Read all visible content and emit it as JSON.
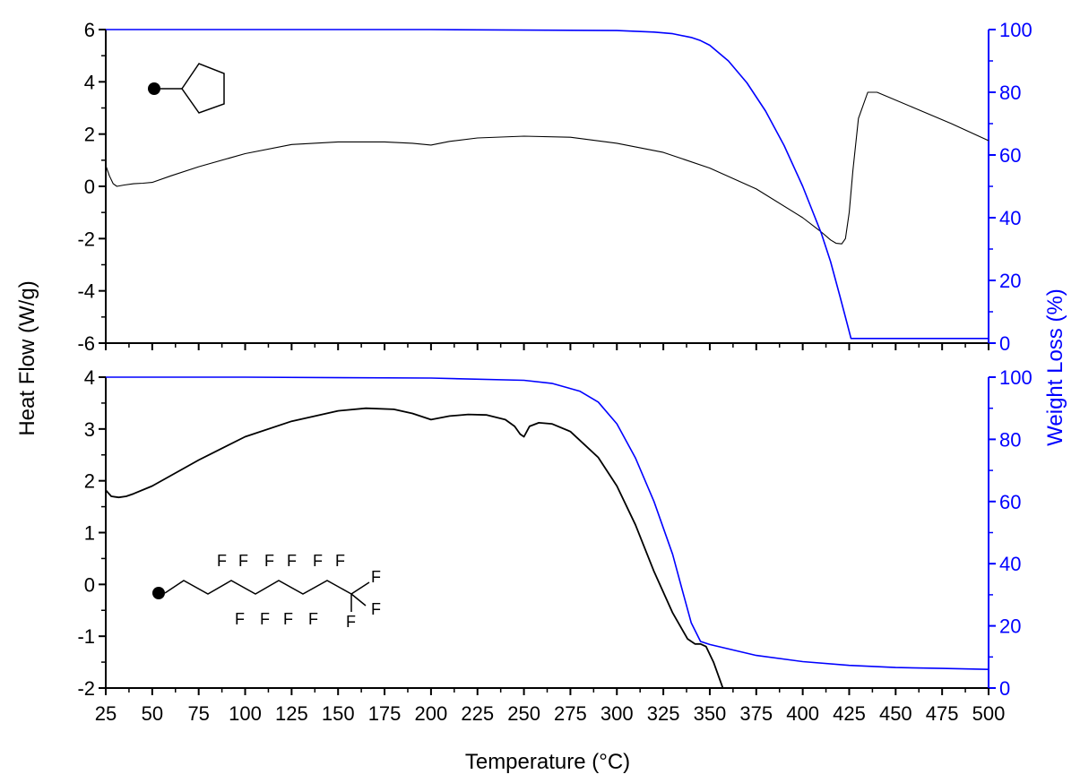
{
  "figure": {
    "xlabel": "Temperature (°C)",
    "ylabel_left": "Heat Flow (W/g)",
    "ylabel_right": "Weight Loss (%)",
    "colors": {
      "heat_flow": "#000000",
      "weight_loss": "#0000ff",
      "axes": "#000000"
    }
  },
  "chart_data": [
    {
      "type": "line",
      "panel": "top",
      "inset_structure": "cyclopentyl",
      "xlim": [
        25,
        500
      ],
      "xticks": [
        25,
        50,
        75,
        100,
        125,
        150,
        175,
        200,
        225,
        250,
        275,
        300,
        325,
        350,
        375,
        400,
        425,
        450,
        475,
        500
      ],
      "y_left": {
        "label": "Heat Flow (W/g)",
        "lim": [
          -6,
          6
        ],
        "ticks": [
          -6,
          -4,
          -2,
          0,
          2,
          4,
          6
        ]
      },
      "y_right": {
        "label": "Weight Loss (%)",
        "lim": [
          0,
          100
        ],
        "ticks": [
          0,
          20,
          40,
          60,
          80,
          100
        ]
      },
      "series": [
        {
          "axis": "left",
          "color": "#000000",
          "x": [
            25,
            27,
            29,
            31,
            35,
            40,
            45,
            50,
            60,
            75,
            100,
            125,
            150,
            175,
            190,
            200,
            210,
            225,
            250,
            275,
            300,
            325,
            350,
            375,
            400,
            410,
            415,
            418,
            421,
            423,
            425,
            427,
            430,
            435,
            440,
            460,
            480,
            500
          ],
          "y": [
            0.8,
            0.4,
            0.1,
            0.0,
            0.05,
            0.1,
            0.12,
            0.15,
            0.4,
            0.75,
            1.25,
            1.6,
            1.7,
            1.7,
            1.65,
            1.58,
            1.72,
            1.85,
            1.92,
            1.88,
            1.65,
            1.3,
            0.7,
            -0.1,
            -1.2,
            -1.75,
            -2.05,
            -2.18,
            -2.2,
            -2.0,
            -1.0,
            0.6,
            2.6,
            3.6,
            3.6,
            3.0,
            2.4,
            1.75
          ]
        },
        {
          "axis": "right",
          "color": "#0000ff",
          "x": [
            25,
            100,
            200,
            300,
            320,
            330,
            340,
            345,
            350,
            360,
            370,
            380,
            390,
            400,
            410,
            415,
            420,
            424,
            426,
            430,
            450,
            475,
            500
          ],
          "y": [
            100,
            100,
            100,
            99.7,
            99.2,
            98.7,
            97.5,
            96.5,
            95.0,
            90.0,
            83.0,
            74.0,
            63.0,
            50.0,
            35.0,
            26.0,
            15.0,
            6.0,
            1.5,
            1.5,
            1.5,
            1.5,
            1.5
          ]
        }
      ]
    },
    {
      "type": "line",
      "panel": "bottom",
      "inset_structure": "perfluorooctyl chain",
      "xlim": [
        25,
        500
      ],
      "xticks": [
        25,
        50,
        75,
        100,
        125,
        150,
        175,
        200,
        225,
        250,
        275,
        300,
        325,
        350,
        375,
        400,
        425,
        450,
        475,
        500
      ],
      "y_left": {
        "label": "Heat Flow (W/g)",
        "lim": [
          -2,
          4
        ],
        "ticks": [
          -2,
          -1,
          0,
          1,
          2,
          3,
          4
        ]
      },
      "y_right": {
        "label": "Weight Loss (%)",
        "lim": [
          0,
          100
        ],
        "ticks": [
          0,
          20,
          40,
          60,
          80,
          100
        ]
      },
      "series": [
        {
          "axis": "left",
          "color": "#000000",
          "x": [
            25,
            28,
            32,
            36,
            40,
            50,
            75,
            100,
            125,
            150,
            165,
            180,
            190,
            200,
            210,
            220,
            230,
            240,
            245,
            248,
            250,
            253,
            258,
            265,
            275,
            290,
            300,
            310,
            320,
            330,
            338,
            342,
            345,
            348,
            352,
            357
          ],
          "y": [
            1.82,
            1.7,
            1.68,
            1.7,
            1.75,
            1.9,
            2.4,
            2.85,
            3.15,
            3.35,
            3.4,
            3.38,
            3.3,
            3.18,
            3.25,
            3.28,
            3.27,
            3.18,
            3.05,
            2.9,
            2.85,
            3.05,
            3.12,
            3.1,
            2.95,
            2.45,
            1.9,
            1.15,
            0.25,
            -0.55,
            -1.05,
            -1.15,
            -1.15,
            -1.2,
            -1.5,
            -2.0
          ]
        },
        {
          "axis": "right",
          "color": "#0000ff",
          "x": [
            25,
            100,
            200,
            250,
            265,
            280,
            290,
            300,
            310,
            320,
            330,
            335,
            340,
            345,
            350,
            375,
            400,
            425,
            450,
            475,
            500
          ],
          "y": [
            100,
            100,
            99.7,
            99.0,
            98.0,
            95.5,
            92.0,
            85.0,
            74.0,
            60.0,
            43.0,
            32.0,
            21.0,
            15.0,
            14.0,
            10.5,
            8.5,
            7.3,
            6.6,
            6.3,
            6.0
          ]
        }
      ]
    }
  ]
}
